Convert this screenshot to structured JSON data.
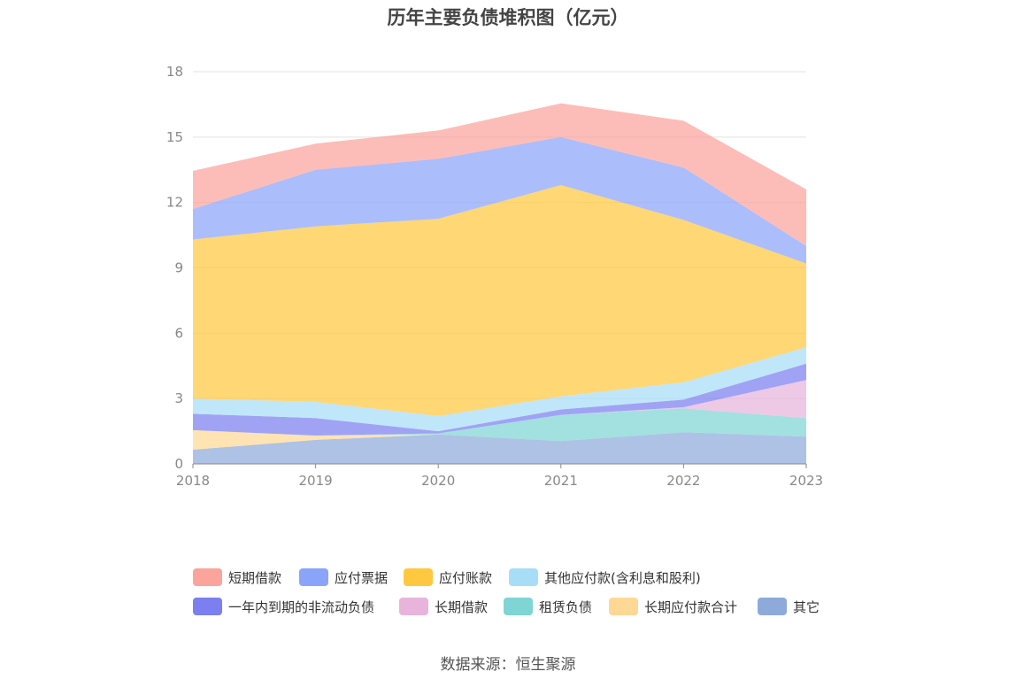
{
  "chart_data": {
    "type": "area",
    "stacked": true,
    "title": "历年主要负债堆积图（亿元）",
    "x": [
      "2018",
      "2019",
      "2020",
      "2021",
      "2022",
      "2023"
    ],
    "yticks": [
      "0",
      "3",
      "6",
      "9",
      "12",
      "15",
      "18"
    ],
    "ylim": [
      0,
      18
    ],
    "grid": true,
    "legend_position": "bottom",
    "series": [
      {
        "name": "其它",
        "color": "#8eaadb",
        "values": [
          0.65,
          1.1,
          1.35,
          1.05,
          1.45,
          1.25
        ]
      },
      {
        "name": "长期应付款合计",
        "color": "#ffd896",
        "values": [
          0.9,
          0.2,
          0.0,
          0.0,
          0.0,
          0.0
        ]
      },
      {
        "name": "租赁负债",
        "color": "#7fd4d4",
        "values": [
          0.0,
          0.0,
          0.05,
          1.2,
          1.1,
          0.85
        ]
      },
      {
        "name": "长期借款",
        "color": "#e8b4dc",
        "values": [
          0.0,
          0.0,
          0.0,
          0.0,
          0.05,
          1.75
        ]
      },
      {
        "name": "一年内到期的非流动负债",
        "color": "#7b7ff0",
        "values": [
          0.75,
          0.8,
          0.1,
          0.25,
          0.35,
          0.75
        ]
      },
      {
        "name": "其他应付款(含利息和股利)",
        "color": "#a8ddf8",
        "values": [
          0.7,
          0.75,
          0.7,
          0.6,
          0.8,
          0.75
        ]
      },
      {
        "name": "应付账款",
        "color": "#ffc83f",
        "values": [
          7.3,
          8.05,
          9.05,
          9.7,
          7.45,
          3.85
        ]
      },
      {
        "name": "应付票据",
        "color": "#8aa4fa",
        "values": [
          1.4,
          2.6,
          2.75,
          2.2,
          2.4,
          0.8
        ]
      },
      {
        "name": "短期借款",
        "color": "#fba49c",
        "values": [
          1.75,
          1.2,
          1.3,
          1.55,
          2.15,
          2.6
        ]
      }
    ]
  },
  "legend_rows": [
    [
      "短期借款",
      "应付票据",
      "应付账款",
      "其他应付款(含利息和股利)"
    ],
    [
      "一年内到期的非流动负债",
      "长期借款",
      "租赁负债",
      "长期应付款合计",
      "其它"
    ]
  ],
  "source": "数据来源：恒生聚源"
}
